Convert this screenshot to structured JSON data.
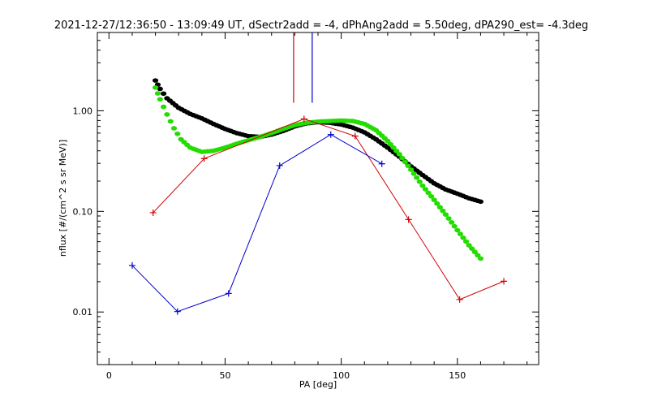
{
  "chart_data": {
    "type": "line",
    "title": "2021-12-27/12:36:50 - 13:09:49 UT, dSectr2add = -4, dPhAng2add = 5.50deg, dPA290_est=  -4.3deg",
    "xlabel": "PA [deg]",
    "ylabel": "nflux [#/(cm^2 s sr MeV)]",
    "x_scale": "linear",
    "y_scale": "log",
    "xlim": [
      -5,
      185
    ],
    "ylim": [
      0.003,
      6
    ],
    "x_ticks": [
      {
        "value": 0,
        "label": "0"
      },
      {
        "value": 50,
        "label": "50"
      },
      {
        "value": 100,
        "label": "100"
      },
      {
        "value": 150,
        "label": "150"
      }
    ],
    "y_ticks": [
      {
        "value": 0.01,
        "label": "0.01"
      },
      {
        "value": 0.1,
        "label": "0.10"
      },
      {
        "value": 1,
        "label": "1.00"
      }
    ],
    "vertical_markers": [
      {
        "x": 79.5,
        "y_from": 1.2,
        "y_to": 6,
        "color": "#d00000"
      },
      {
        "x": 87.5,
        "y_from": 1.2,
        "y_to": 6,
        "color": "#0000cc"
      }
    ],
    "series": [
      {
        "style": "line-plus",
        "color": "#d00000",
        "x": [
          19,
          41,
          84,
          106,
          129,
          151,
          170
        ],
        "y": [
          0.097,
          0.335,
          0.83,
          0.56,
          0.083,
          0.0133,
          0.0202
        ]
      },
      {
        "style": "line-plus",
        "color": "#0000cc",
        "x": [
          10,
          29.5,
          51.5,
          73.5,
          95.5,
          117.5
        ],
        "y": [
          0.029,
          0.0101,
          0.0153,
          0.285,
          0.58,
          0.297
        ]
      },
      {
        "style": "dots",
        "color": "#000000",
        "x": [
          20,
          22,
          25,
          30,
          35,
          40,
          45,
          50,
          55,
          60,
          65,
          70,
          75,
          80,
          85,
          90,
          95,
          100,
          105,
          110,
          115,
          120,
          125,
          130,
          135,
          140,
          145,
          150,
          155,
          160
        ],
        "y": [
          2.0,
          1.65,
          1.33,
          1.07,
          0.93,
          0.84,
          0.74,
          0.66,
          0.6,
          0.56,
          0.55,
          0.58,
          0.63,
          0.7,
          0.75,
          0.77,
          0.76,
          0.73,
          0.68,
          0.61,
          0.52,
          0.43,
          0.35,
          0.28,
          0.23,
          0.19,
          0.165,
          0.15,
          0.135,
          0.125
        ]
      },
      {
        "style": "dots",
        "color": "#22dd00",
        "x": [
          20,
          22,
          25,
          28,
          31,
          35,
          40,
          45,
          50,
          55,
          60,
          65,
          70,
          75,
          80,
          85,
          90,
          95,
          100,
          105,
          110,
          115,
          120,
          125,
          130,
          135,
          140,
          145,
          150,
          155,
          160
        ],
        "y": [
          1.7,
          1.3,
          0.92,
          0.67,
          0.52,
          0.43,
          0.39,
          0.4,
          0.43,
          0.47,
          0.51,
          0.55,
          0.6,
          0.66,
          0.72,
          0.76,
          0.78,
          0.79,
          0.8,
          0.79,
          0.74,
          0.64,
          0.5,
          0.37,
          0.26,
          0.18,
          0.13,
          0.093,
          0.065,
          0.046,
          0.034
        ]
      }
    ]
  }
}
